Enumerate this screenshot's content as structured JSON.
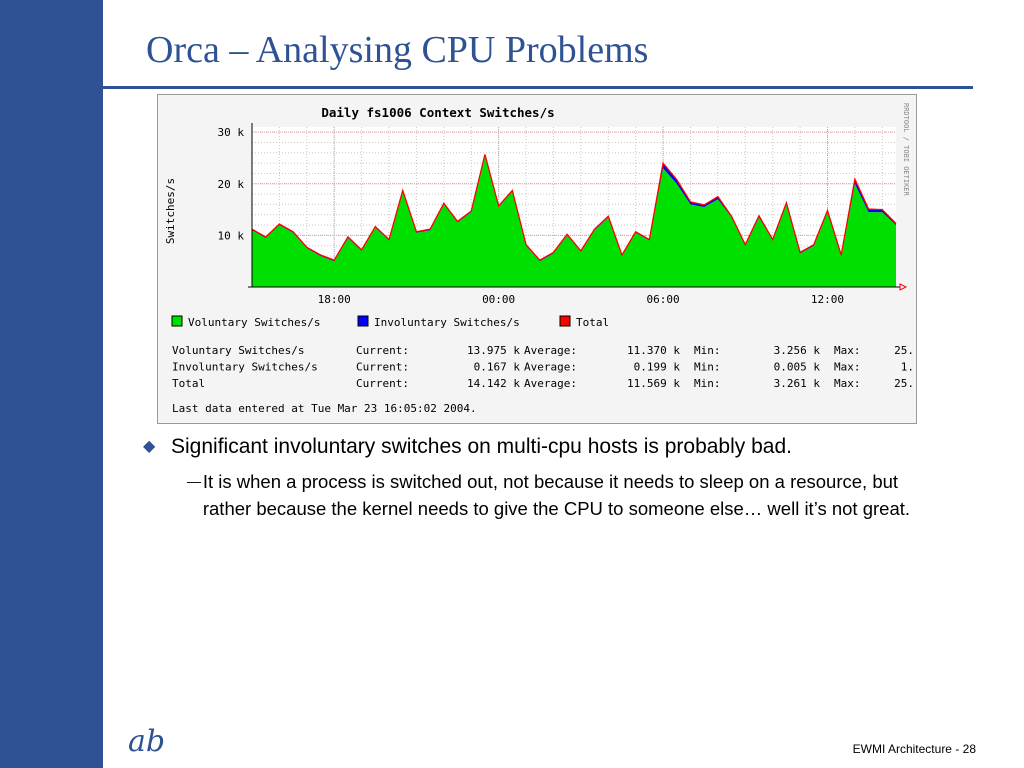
{
  "slide": {
    "title": "Orca – Analysing CPU Problems",
    "bullets": [
      {
        "text": "Significant involuntary switches on multi-cpu hosts is probably bad.",
        "subs": [
          "It is when a process is switched out, not because it needs to sleep on a resource, but rather because the kernel needs to give the CPU to someone else… well it’s not great."
        ]
      }
    ],
    "footer": "EWMI Architecture - 28",
    "logo_glyphs": "ab",
    "bullet_icon": "diamond-icon",
    "sub_bullet_icon": "em-dash",
    "colors": {
      "accent": "#2e5293"
    }
  },
  "chart_data": {
    "type": "area",
    "title": "Daily fs1006 Context Switches/s",
    "ylabel": "Switches/s",
    "watermark": "RRDTOOL / TOBI OETIKER",
    "ylim": [
      0,
      31000
    ],
    "yticks": [
      {
        "value": 10000,
        "label": "10 k"
      },
      {
        "value": 20000,
        "label": "20 k"
      },
      {
        "value": 30000,
        "label": "30 k"
      }
    ],
    "xlim": [
      -3,
      20.5
    ],
    "xticks": [
      {
        "value": 0,
        "label": "18:00"
      },
      {
        "value": 6,
        "label": "00:00"
      },
      {
        "value": 12,
        "label": "06:00"
      },
      {
        "value": 18,
        "label": "12:00"
      }
    ],
    "grid": true,
    "colors": {
      "voluntary": "#00e000",
      "involuntary": "#0000ff",
      "total": "#ff0000"
    },
    "x": [
      -3,
      -2.5,
      -2,
      -1.5,
      -1,
      -0.5,
      0,
      0.5,
      1,
      1.5,
      2,
      2.5,
      3,
      3.5,
      4,
      4.5,
      5,
      5.5,
      6,
      6.5,
      7,
      7.5,
      8,
      8.5,
      9,
      9.5,
      10,
      10.5,
      11,
      11.5,
      12,
      12.5,
      13,
      13.5,
      14,
      14.5,
      15,
      15.5,
      16,
      16.5,
      17,
      17.5,
      18,
      18.5,
      19,
      19.5,
      20,
      20.5
    ],
    "series": [
      {
        "name": "Voluntary Switches/s",
        "values": [
          11000,
          9500,
          12000,
          10500,
          7500,
          6000,
          5000,
          9500,
          7000,
          11500,
          9000,
          18500,
          10500,
          11000,
          16000,
          12500,
          14500,
          25500,
          15500,
          18500,
          8000,
          5000,
          6500,
          10000,
          6800,
          11000,
          13500,
          6000,
          10500,
          9000,
          23000,
          20000,
          16000,
          15500,
          17000,
          13500,
          8000,
          13500,
          9000,
          16000,
          6500,
          8000,
          14500,
          6000,
          20000,
          14500,
          14500,
          12000
        ]
      },
      {
        "name": "Involuntary Switches/s",
        "values": [
          200,
          200,
          200,
          200,
          200,
          200,
          200,
          200,
          200,
          200,
          200,
          200,
          200,
          200,
          200,
          200,
          200,
          200,
          200,
          200,
          200,
          200,
          200,
          200,
          200,
          200,
          200,
          200,
          200,
          200,
          1000,
          800,
          500,
          400,
          500,
          200,
          200,
          300,
          200,
          300,
          200,
          200,
          300,
          200,
          900,
          600,
          500,
          300
        ]
      },
      {
        "name": "Total",
        "values": [
          11200,
          9700,
          12200,
          10700,
          7700,
          6200,
          5200,
          9700,
          7200,
          11700,
          9200,
          18700,
          10700,
          11200,
          16200,
          12700,
          14700,
          25700,
          15700,
          18700,
          8200,
          5200,
          6700,
          10200,
          7000,
          11200,
          13700,
          6200,
          10700,
          9200,
          24000,
          20800,
          16500,
          15900,
          17500,
          13700,
          8200,
          13800,
          9200,
          16300,
          6700,
          8200,
          14800,
          6200,
          20900,
          15100,
          15000,
          12300
        ]
      }
    ],
    "legend": [
      {
        "label": "Voluntary Switches/s",
        "color": "#00e000"
      },
      {
        "label": "Involuntary Switches/s",
        "color": "#0000ff"
      },
      {
        "label": "Total",
        "color": "#ff0000"
      }
    ],
    "stats": [
      {
        "name": "Voluntary Switches/s",
        "current": "13.975 k",
        "average": "11.370 k",
        "min": "3.256 k",
        "max": "25."
      },
      {
        "name": "Involuntary Switches/s",
        "current": "0.167 k",
        "average": "0.199 k",
        "min": "0.005 k",
        "max": "1."
      },
      {
        "name": "Total",
        "current": "14.142 k",
        "average": "11.569 k",
        "min": "3.261 k",
        "max": "25."
      }
    ],
    "stat_labels": {
      "current": "Current:",
      "average": "Average:",
      "min": "Min:",
      "max": "Max:"
    },
    "last_update": "Last data entered at Tue Mar 23 16:05:02 2004."
  }
}
